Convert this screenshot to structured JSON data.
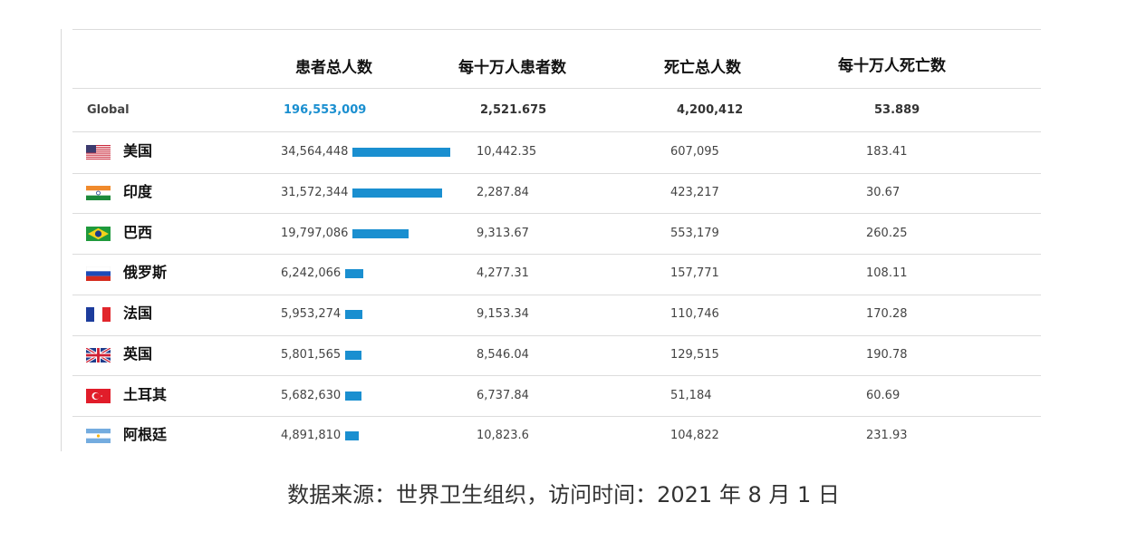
{
  "chart_data": {
    "type": "table",
    "columns": [
      "",
      "患者总人数",
      "每十万人患者数",
      "死亡总人数",
      "每十万人死亡数"
    ],
    "global": {
      "label": "Global",
      "cases": "196,553,009",
      "cases_per_100k": "2,521.675",
      "deaths": "4,200,412",
      "deaths_per_100k": "53.889"
    },
    "rows": [
      {
        "country": "美国",
        "flag": "us-flag-icon",
        "cases": "34,564,448",
        "cases_value": 34564448,
        "cases_per_100k": "10,442.35",
        "deaths": "607,095",
        "deaths_per_100k": "183.41"
      },
      {
        "country": "印度",
        "flag": "india-flag-icon",
        "cases": "31,572,344",
        "cases_value": 31572344,
        "cases_per_100k": "2,287.84",
        "deaths": "423,217",
        "deaths_per_100k": "30.67"
      },
      {
        "country": "巴西",
        "flag": "brazil-flag-icon",
        "cases": "19,797,086",
        "cases_value": 19797086,
        "cases_per_100k": "9,313.67",
        "deaths": "553,179",
        "deaths_per_100k": "260.25"
      },
      {
        "country": "俄罗斯",
        "flag": "russia-flag-icon",
        "cases": "6,242,066",
        "cases_value": 6242066,
        "cases_per_100k": "4,277.31",
        "deaths": "157,771",
        "deaths_per_100k": "108.11"
      },
      {
        "country": "法国",
        "flag": "france-flag-icon",
        "cases": "5,953,274",
        "cases_value": 5953274,
        "cases_per_100k": "9,153.34",
        "deaths": "110,746",
        "deaths_per_100k": "170.28"
      },
      {
        "country": "英国",
        "flag": "uk-flag-icon",
        "cases": "5,801,565",
        "cases_value": 5801565,
        "cases_per_100k": "8,546.04",
        "deaths": "129,515",
        "deaths_per_100k": "190.78"
      },
      {
        "country": "土耳其",
        "flag": "turkey-flag-icon",
        "cases": "5,682,630",
        "cases_value": 5682630,
        "cases_per_100k": "6,737.84",
        "deaths": "51,184",
        "deaths_per_100k": "60.69"
      },
      {
        "country": "阿根廷",
        "flag": "argentina-flag-icon",
        "cases": "4,891,810",
        "cases_value": 4891810,
        "cases_per_100k": "10,823.6",
        "deaths": "104,822",
        "deaths_per_100k": "231.93"
      }
    ],
    "bar_color": "#1a8fd0",
    "caption": "数据来源：世界卫生组织，访问时间：2021 年 8 月 1 日"
  }
}
